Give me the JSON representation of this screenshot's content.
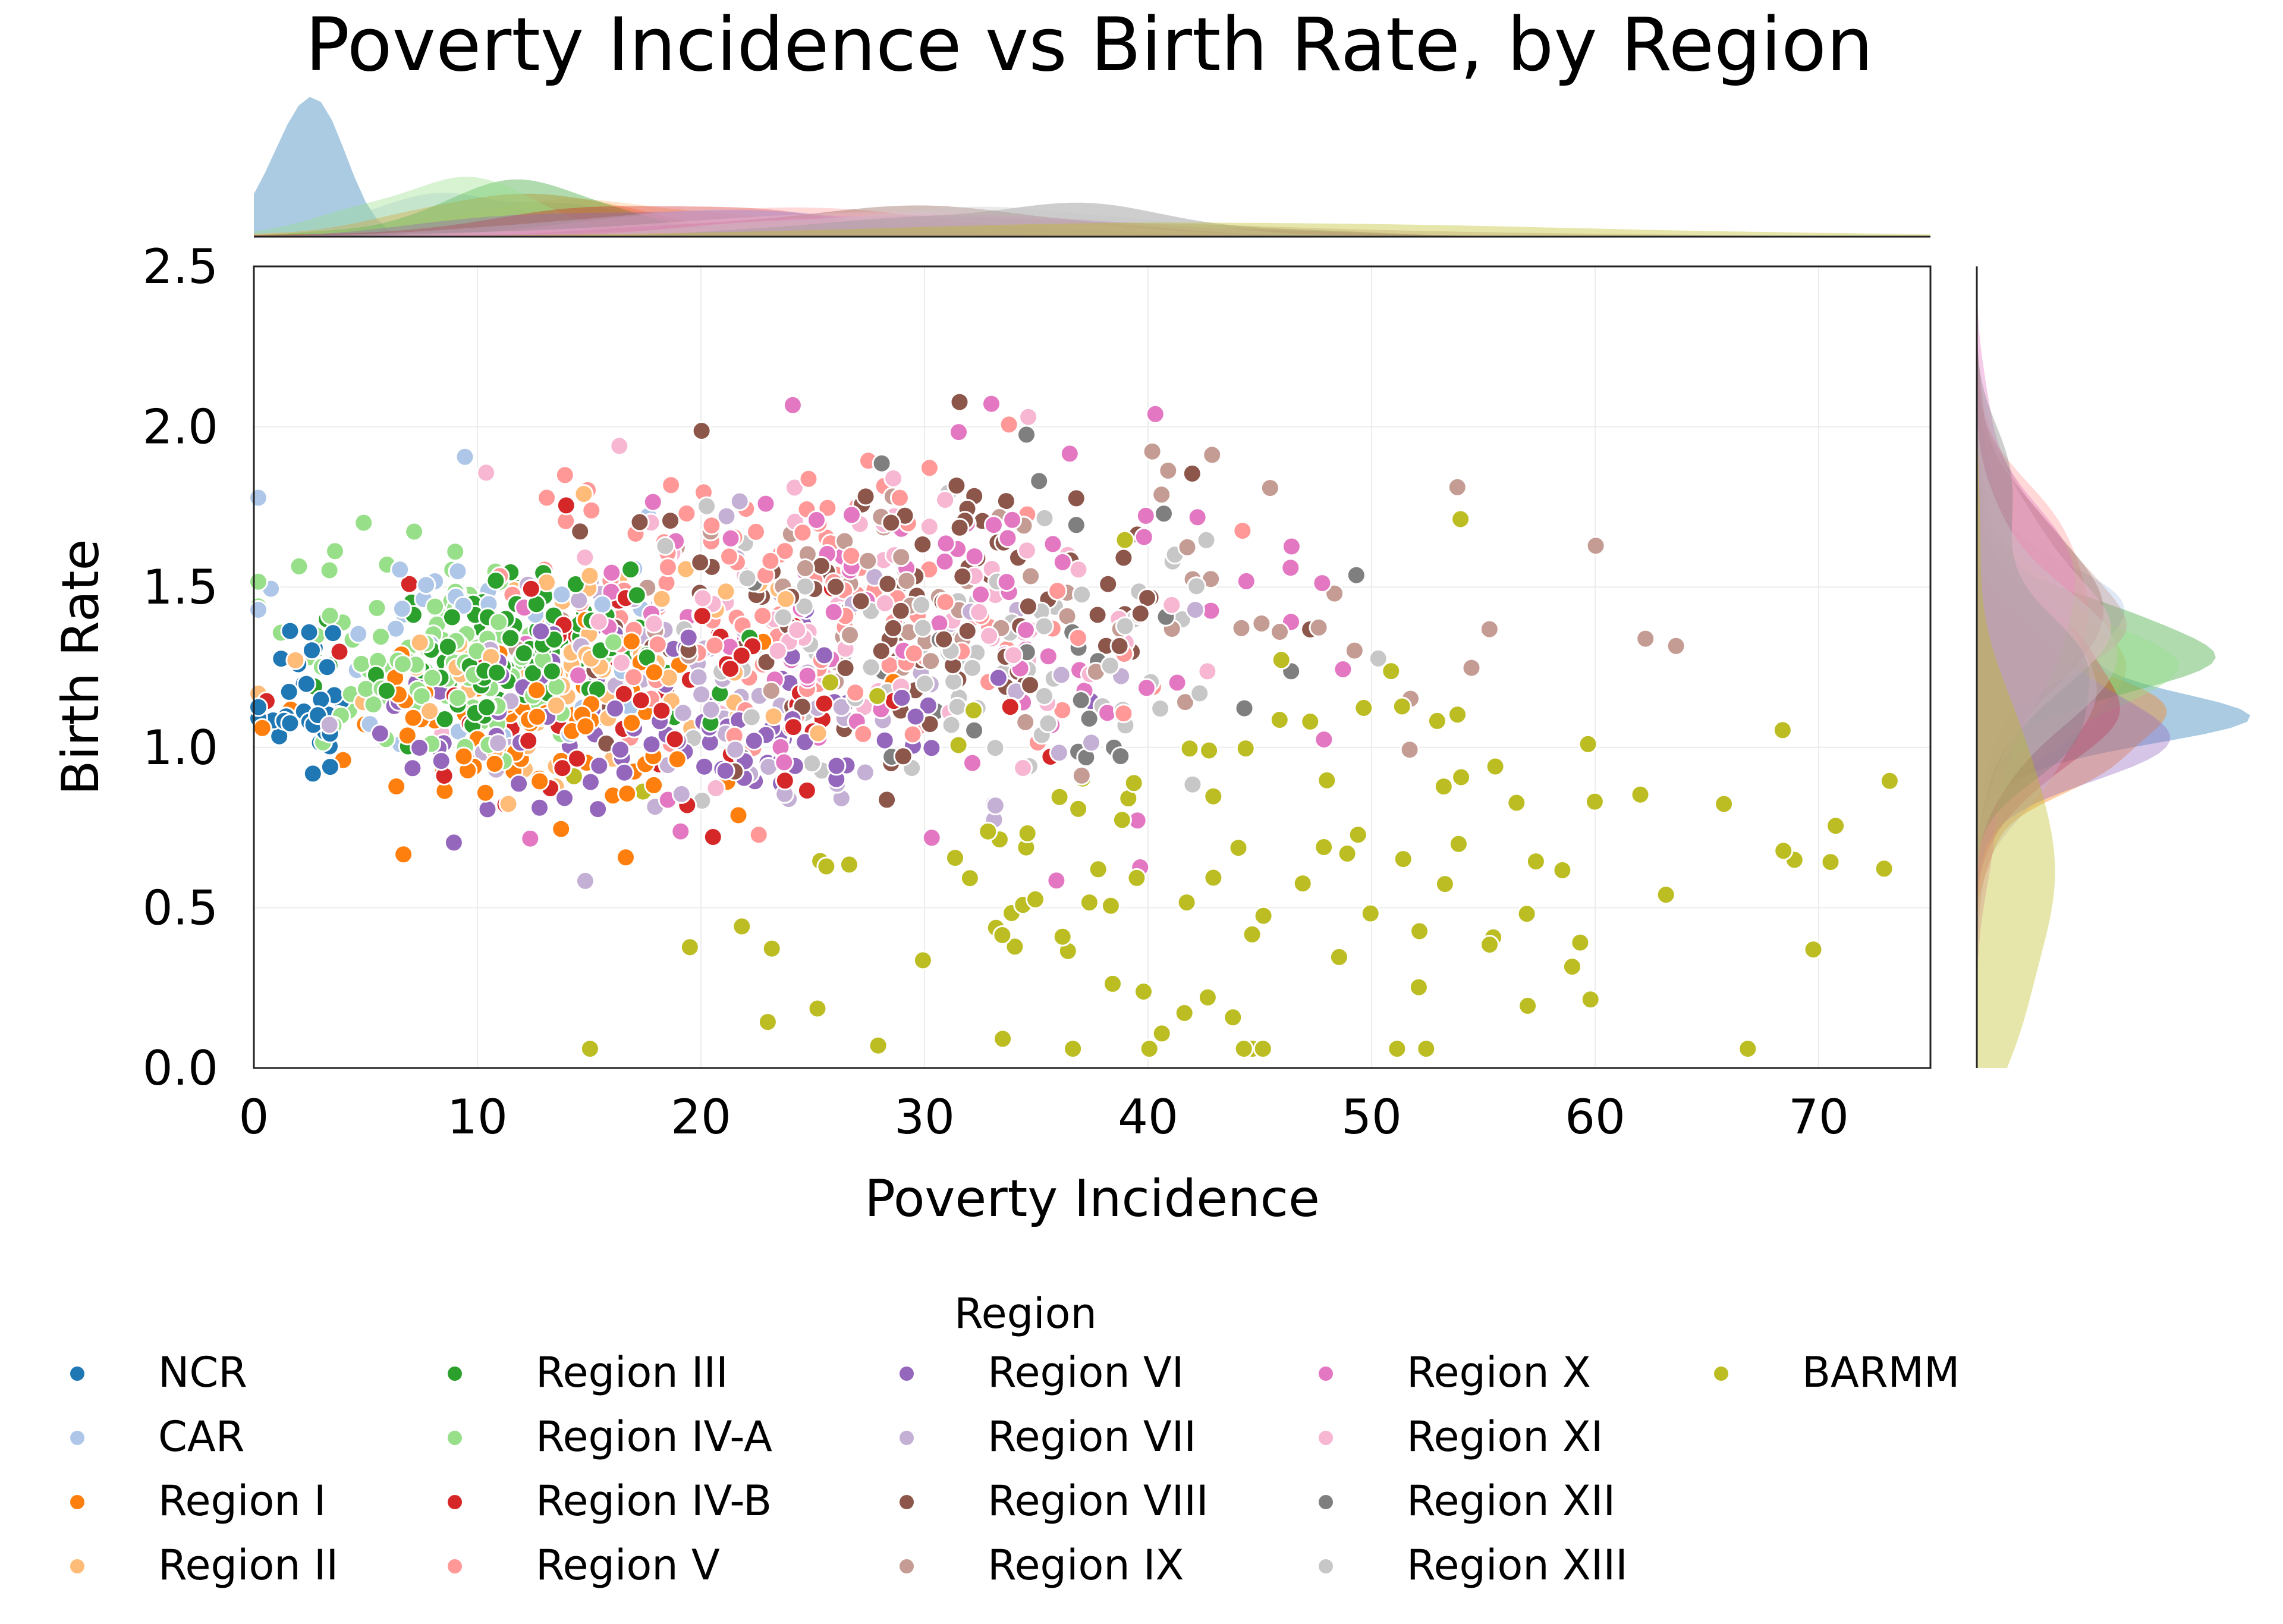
{
  "chart_data": {
    "type": "scatter",
    "title": "Poverty Incidence vs Birth Rate, by Region",
    "xlabel": "Poverty Incidence",
    "ylabel": "Birth Rate",
    "xlim": [
      0,
      75
    ],
    "ylim": [
      0,
      2.5
    ],
    "xticks": [
      "0",
      "10",
      "20",
      "30",
      "40",
      "50",
      "60",
      "70"
    ],
    "yticks": [
      "0.0",
      "0.5",
      "1.0",
      "1.5",
      "2.0",
      "2.5"
    ],
    "grid": true,
    "marginals": "kde",
    "legend": {
      "title": "Region",
      "placement": "bottom",
      "columns": 5
    },
    "series": [
      {
        "name": "NCR",
        "color": "#1f77b4",
        "dist": {
          "xm": 2.2,
          "xs": 1.3,
          "ym": 1.17,
          "ys": 0.13,
          "n": 34
        }
      },
      {
        "name": "CAR",
        "color": "#aec7e8",
        "dist": {
          "xm": 9.5,
          "xs": 4.0,
          "ym": 1.35,
          "ys": 0.22,
          "n": 44
        }
      },
      {
        "name": "Region I",
        "color": "#ff7f0e",
        "dist": {
          "xm": 12.5,
          "xs": 5.0,
          "ym": 1.08,
          "ys": 0.16,
          "n": 85
        }
      },
      {
        "name": "Region II",
        "color": "#ffbb78",
        "dist": {
          "xm": 15.5,
          "xs": 5.5,
          "ym": 1.25,
          "ys": 0.2,
          "n": 80
        }
      },
      {
        "name": "Region III",
        "color": "#2ca02c",
        "dist": {
          "xm": 12.5,
          "xs": 3.8,
          "ym": 1.3,
          "ys": 0.13,
          "n": 115
        }
      },
      {
        "name": "Region IV-A",
        "color": "#98df8a",
        "dist": {
          "xm": 9.0,
          "xs": 3.8,
          "ym": 1.28,
          "ys": 0.15,
          "n": 125
        }
      },
      {
        "name": "Region IV-B",
        "color": "#d62728",
        "dist": {
          "xm": 18.0,
          "xs": 6.0,
          "ym": 1.15,
          "ys": 0.2,
          "n": 65
        }
      },
      {
        "name": "Region V",
        "color": "#ff9896",
        "dist": {
          "xm": 24.0,
          "xs": 7.0,
          "ym": 1.45,
          "ys": 0.22,
          "n": 120
        }
      },
      {
        "name": "Region VI",
        "color": "#9467bd",
        "dist": {
          "xm": 19.0,
          "xs": 6.5,
          "ym": 1.1,
          "ys": 0.16,
          "n": 105
        }
      },
      {
        "name": "Region VII",
        "color": "#c5b0d5",
        "dist": {
          "xm": 23.0,
          "xs": 8.5,
          "ym": 1.2,
          "ys": 0.22,
          "n": 75
        }
      },
      {
        "name": "Region VIII",
        "color": "#8c564b",
        "dist": {
          "xm": 29.0,
          "xs": 7.0,
          "ym": 1.4,
          "ys": 0.24,
          "n": 110
        }
      },
      {
        "name": "Region IX",
        "color": "#c49c94",
        "dist": {
          "xm": 33.0,
          "xs": 10.5,
          "ym": 1.45,
          "ys": 0.2,
          "n": 75
        }
      },
      {
        "name": "Region X",
        "color": "#e377c2",
        "dist": {
          "xm": 31.0,
          "xs": 8.5,
          "ym": 1.4,
          "ys": 0.3,
          "n": 90
        }
      },
      {
        "name": "Region XI",
        "color": "#f7b6d2",
        "dist": {
          "xm": 27.0,
          "xs": 7.5,
          "ym": 1.45,
          "ys": 0.24,
          "n": 70
        }
      },
      {
        "name": "Region XII",
        "color": "#7f7f7f",
        "dist": {
          "xm": 36.0,
          "xs": 7.0,
          "ym": 1.35,
          "ys": 0.24,
          "n": 28
        }
      },
      {
        "name": "Region XIII",
        "color": "#c7c7c7",
        "dist": {
          "xm": 32.0,
          "xs": 7.0,
          "ym": 1.28,
          "ys": 0.22,
          "n": 80
        }
      },
      {
        "name": "BARMM",
        "color": "#bcbd22",
        "dist": {
          "xm": 44.0,
          "xs": 15.0,
          "ym": 0.55,
          "ys": 0.35,
          "n": 115
        }
      }
    ]
  }
}
